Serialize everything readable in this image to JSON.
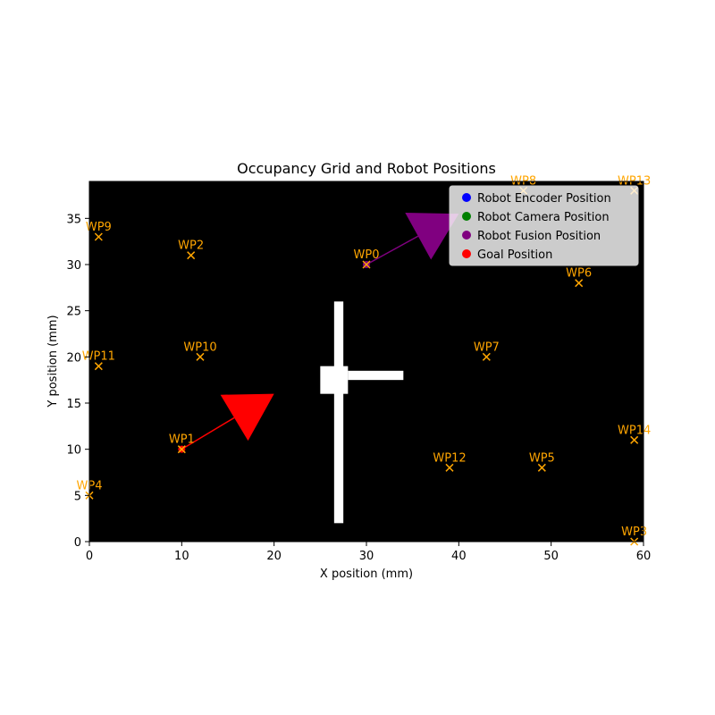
{
  "chart_data": {
    "type": "scatter",
    "title": "Occupancy Grid and Robot Positions",
    "xlabel": "X position (mm)",
    "ylabel": "Y position (mm)",
    "xlim": [
      0,
      60
    ],
    "ylim": [
      0,
      39
    ],
    "xticks": [
      0,
      10,
      20,
      30,
      40,
      50,
      60
    ],
    "yticks": [
      0,
      5,
      10,
      15,
      20,
      25,
      30,
      35
    ],
    "background_color": "#000000",
    "obstacle_color": "#ffffff",
    "waypoint_color": "#ffa500",
    "obstacles": [
      {
        "x0": 26.5,
        "x1": 27.5,
        "y0": 2,
        "y1": 26
      },
      {
        "x0": 25,
        "x1": 28,
        "y0": 16,
        "y1": 19
      },
      {
        "x0": 28,
        "x1": 34,
        "y0": 17.5,
        "y1": 18.5
      }
    ],
    "waypoints": [
      {
        "label": "WP0",
        "x": 30,
        "y": 30
      },
      {
        "label": "WP1",
        "x": 10,
        "y": 10
      },
      {
        "label": "WP2",
        "x": 11,
        "y": 31
      },
      {
        "label": "WP3",
        "x": 59,
        "y": 0
      },
      {
        "label": "WP4",
        "x": 0,
        "y": 5
      },
      {
        "label": "WP5",
        "x": 49,
        "y": 8
      },
      {
        "label": "WP6",
        "x": 53,
        "y": 28
      },
      {
        "label": "WP7",
        "x": 43,
        "y": 20
      },
      {
        "label": "WP8",
        "x": 47,
        "y": 38
      },
      {
        "label": "WP9",
        "x": 1,
        "y": 33
      },
      {
        "label": "WP10",
        "x": 12,
        "y": 20
      },
      {
        "label": "WP11",
        "x": 1,
        "y": 19
      },
      {
        "label": "WP12",
        "x": 39,
        "y": 8
      },
      {
        "label": "WP13",
        "x": 59,
        "y": 38
      },
      {
        "label": "WP14",
        "x": 59,
        "y": 11
      }
    ],
    "arrows": [
      {
        "series": "Goal Position",
        "color": "#ff0000",
        "x": 10,
        "y": 10,
        "dx": 10,
        "dy": 6
      },
      {
        "series": "Robot Fusion Position",
        "color": "#800080",
        "x": 30,
        "y": 30,
        "dx": 10,
        "dy": 5.5
      }
    ],
    "positions": [
      {
        "series": "Goal Position",
        "color": "#ff0000",
        "x": 10,
        "y": 10
      },
      {
        "series": "Robot Fusion Position",
        "color": "#800080",
        "x": 30,
        "y": 30
      }
    ],
    "legend": {
      "placement": "top-right",
      "entries": [
        {
          "label": "Robot Encoder Position",
          "color": "#0000ff"
        },
        {
          "label": "Robot Camera Position",
          "color": "#008000"
        },
        {
          "label": "Robot Fusion Position",
          "color": "#800080"
        },
        {
          "label": "Goal Position",
          "color": "#ff0000"
        }
      ]
    }
  }
}
